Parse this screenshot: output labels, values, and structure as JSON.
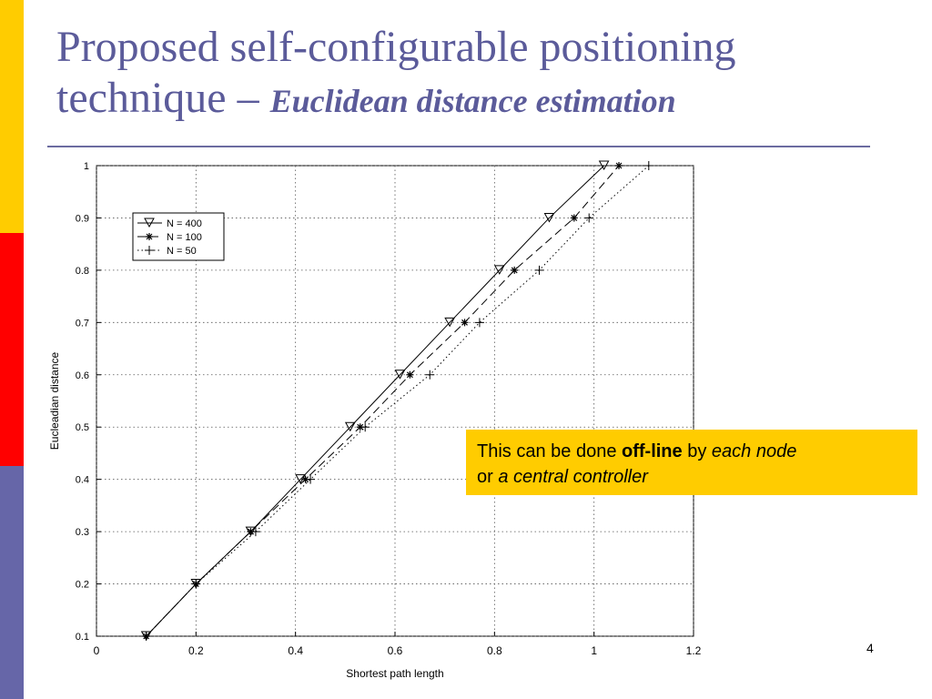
{
  "slide": {
    "title_main": "Proposed self-configurable positioning technique",
    "title_dash": " – ",
    "title_sub": "Euclidean distance estimation",
    "page_number": "4",
    "accent_colors": {
      "title": "#5b5b9a",
      "callout_bg": "#ffcc00",
      "bar_yellow": "#ffcc00",
      "bar_red": "#ff0000",
      "bar_blue": "#6666a8"
    }
  },
  "callout": {
    "t1": "This can be done ",
    "t2": "off-line",
    "t3": " by ",
    "t4": "each node",
    "t5": "or ",
    "t6": "a central controller"
  },
  "chart_data": {
    "type": "line",
    "xlabel": "Shortest path length",
    "ylabel": "Eucleadian distance",
    "xlim": [
      0,
      1.2
    ],
    "ylim": [
      0.1,
      1
    ],
    "xticks": [
      "0",
      "0.2",
      "0.4",
      "0.6",
      "0.8",
      "1",
      "1.2"
    ],
    "yticks": [
      "0.1",
      "0.2",
      "0.3",
      "0.4",
      "0.5",
      "0.6",
      "0.7",
      "0.8",
      "0.9",
      "1"
    ],
    "grid": true,
    "legend_position": "top-left",
    "series": [
      {
        "name": "N = 400",
        "marker": "triangle-down",
        "line": "solid",
        "x": [
          0.1,
          0.2,
          0.31,
          0.41,
          0.51,
          0.61,
          0.71,
          0.81,
          0.91,
          1.02
        ],
        "y": [
          0.1,
          0.2,
          0.3,
          0.4,
          0.5,
          0.6,
          0.7,
          0.8,
          0.9,
          1.0
        ]
      },
      {
        "name": "N = 100",
        "marker": "asterisk",
        "line": "dashed",
        "x": [
          0.1,
          0.2,
          0.31,
          0.42,
          0.53,
          0.63,
          0.74,
          0.84,
          0.96,
          1.05
        ],
        "y": [
          0.1,
          0.2,
          0.3,
          0.4,
          0.5,
          0.6,
          0.7,
          0.8,
          0.9,
          1.0
        ]
      },
      {
        "name": "N = 50",
        "marker": "plus",
        "line": "dotted",
        "x": [
          0.1,
          0.2,
          0.32,
          0.43,
          0.54,
          0.67,
          0.77,
          0.89,
          0.99,
          1.11
        ],
        "y": [
          0.1,
          0.2,
          0.3,
          0.4,
          0.5,
          0.6,
          0.7,
          0.8,
          0.9,
          1.0
        ]
      }
    ]
  }
}
